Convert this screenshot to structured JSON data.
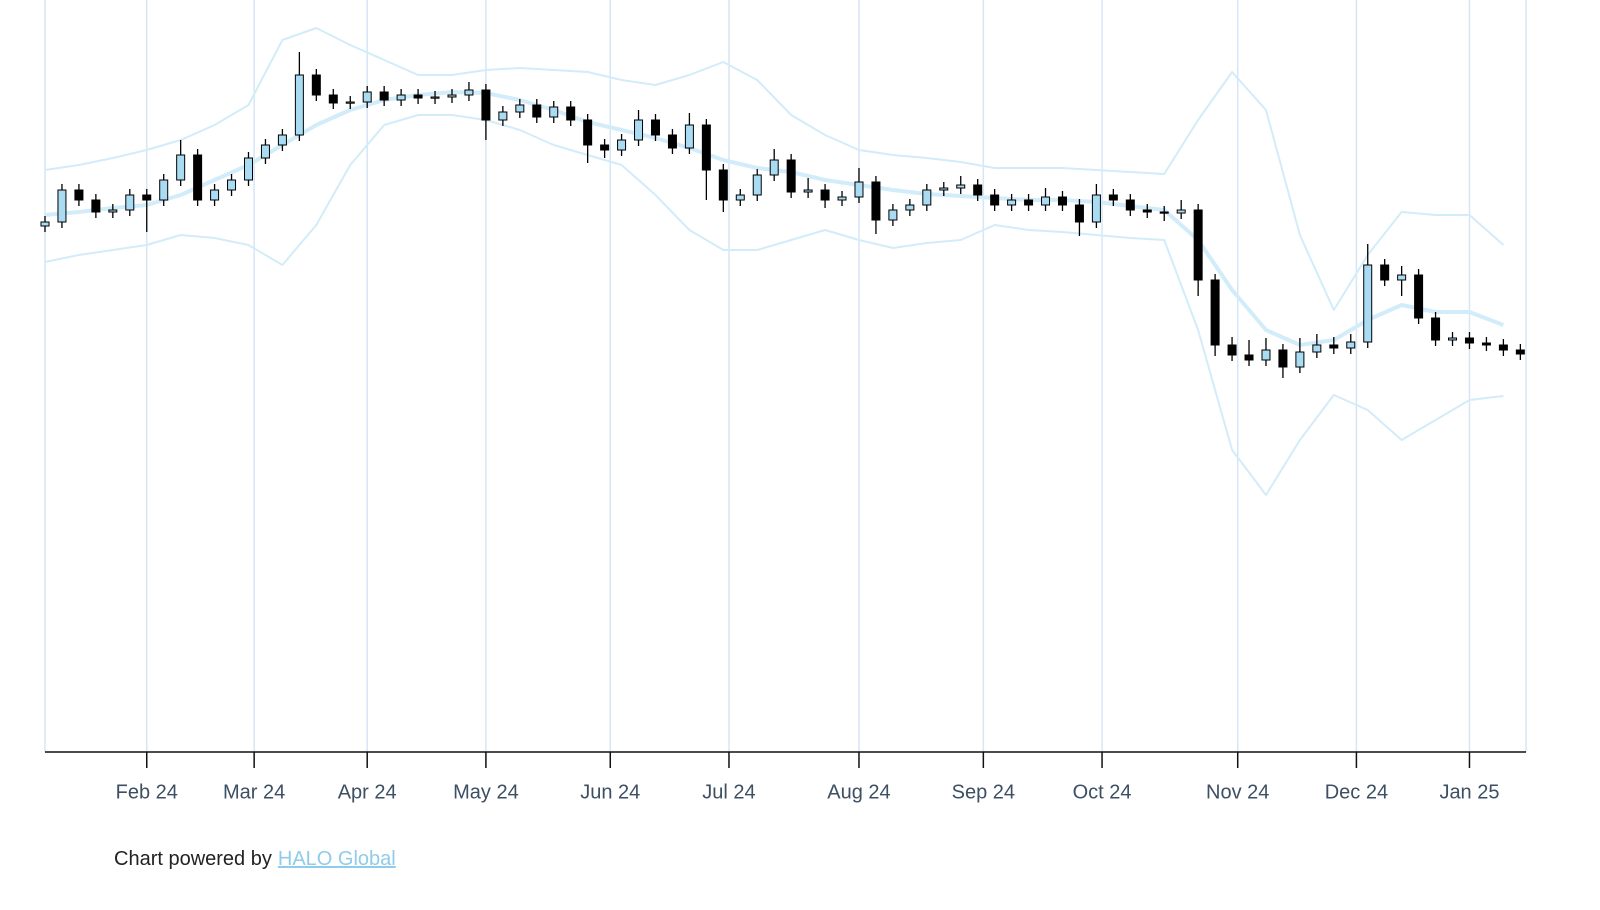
{
  "chart_data": {
    "type": "candlestick",
    "xlim": [
      0,
      262
    ],
    "ylim": [
      0,
      75.2
    ],
    "xticks": [
      {
        "value": 18,
        "label": "Feb 24"
      },
      {
        "value": 37,
        "label": "Mar 24"
      },
      {
        "value": 57,
        "label": "Apr 24"
      },
      {
        "value": 78,
        "label": "May 24"
      },
      {
        "value": 100,
        "label": "Jun 24"
      },
      {
        "value": 121,
        "label": "Jul 24"
      },
      {
        "value": 144,
        "label": "Aug 24"
      },
      {
        "value": 166,
        "label": "Sep 24"
      },
      {
        "value": 187,
        "label": "Oct 24"
      },
      {
        "value": 211,
        "label": "Nov 24"
      },
      {
        "value": 232,
        "label": "Dec 24"
      },
      {
        "value": 252,
        "label": "Jan 25"
      }
    ],
    "grid": true,
    "up_color": "#a9dcf3",
    "down_color": "#000000",
    "x": [
      0,
      3,
      6,
      9,
      12,
      15,
      18,
      21,
      24,
      27,
      30,
      33,
      36,
      39,
      42,
      45,
      48,
      51,
      54,
      57,
      60,
      63,
      66,
      69,
      72,
      75,
      78,
      81,
      84,
      87,
      90,
      93,
      96,
      99,
      102,
      105,
      108,
      111,
      114,
      117,
      120,
      123,
      126,
      129,
      132,
      135,
      138,
      141,
      144,
      147,
      150,
      153,
      156,
      159,
      162,
      165,
      168,
      171,
      174,
      177,
      180,
      183,
      186,
      189,
      192,
      195,
      198,
      201,
      204,
      207,
      210,
      213,
      216,
      219,
      222,
      225,
      228,
      231,
      234,
      237,
      240,
      243,
      246,
      249,
      252,
      255,
      258,
      261
    ],
    "open": [
      52.6,
      53.0,
      56.2,
      55.2,
      54.0,
      54.2,
      55.7,
      55.2,
      57.2,
      59.7,
      55.2,
      56.2,
      57.2,
      59.4,
      60.7,
      61.7,
      67.7,
      65.7,
      64.9,
      65.0,
      66.0,
      65.2,
      65.7,
      65.4,
      65.5,
      65.7,
      66.2,
      63.2,
      64.0,
      64.7,
      63.5,
      64.5,
      63.2,
      60.7,
      60.2,
      61.2,
      63.2,
      61.7,
      60.4,
      62.7,
      58.2,
      55.2,
      55.7,
      57.7,
      59.2,
      56.0,
      56.2,
      55.2,
      55.5,
      57.0,
      53.2,
      54.2,
      54.7,
      56.2,
      56.4,
      56.7,
      55.7,
      54.7,
      55.2,
      54.7,
      55.5,
      54.7,
      53.0,
      55.7,
      55.2,
      54.2,
      54.0,
      53.9,
      54.2,
      47.2,
      40.7,
      39.7,
      39.2,
      40.2,
      38.5,
      40.0,
      40.7,
      40.4,
      41.0,
      48.7,
      47.2,
      47.7,
      43.4,
      41.2,
      41.4,
      40.9,
      40.7,
      40.2
    ],
    "high": [
      53.6,
      56.8,
      56.8,
      55.8,
      54.8,
      56.3,
      56.3,
      57.8,
      61.2,
      60.3,
      56.8,
      57.8,
      60.0,
      61.3,
      62.3,
      70.0,
      68.3,
      66.3,
      65.6,
      66.6,
      66.6,
      66.3,
      66.3,
      66.1,
      66.3,
      67.0,
      66.8,
      64.6,
      65.3,
      65.3,
      65.1,
      65.1,
      63.8,
      61.3,
      61.8,
      64.2,
      63.8,
      62.3,
      63.9,
      63.3,
      58.8,
      56.3,
      58.3,
      60.3,
      59.8,
      57.4,
      56.8,
      56.1,
      58.4,
      57.6,
      54.8,
      55.3,
      56.8,
      57.0,
      57.6,
      57.3,
      56.3,
      55.8,
      55.8,
      56.4,
      56.1,
      55.3,
      56.8,
      56.3,
      55.8,
      54.8,
      54.6,
      55.2,
      54.8,
      47.8,
      41.5,
      41.2,
      41.4,
      40.8,
      41.4,
      41.8,
      41.5,
      41.8,
      50.8,
      49.3,
      48.6,
      48.3,
      44.0,
      42.0,
      42.0,
      41.5,
      41.3,
      40.8
    ],
    "low": [
      52.0,
      52.4,
      54.6,
      53.4,
      53.4,
      53.6,
      52.0,
      54.6,
      56.6,
      54.6,
      54.6,
      55.6,
      56.6,
      58.8,
      60.1,
      61.1,
      65.1,
      64.3,
      64.3,
      64.4,
      64.6,
      64.6,
      64.8,
      64.8,
      64.9,
      65.1,
      61.2,
      62.6,
      63.4,
      62.9,
      62.9,
      62.6,
      58.9,
      59.4,
      59.6,
      60.6,
      61.1,
      59.8,
      59.8,
      55.2,
      54.0,
      54.6,
      55.1,
      57.1,
      55.4,
      55.4,
      54.4,
      54.6,
      54.9,
      51.8,
      52.6,
      53.6,
      54.1,
      55.6,
      55.8,
      55.1,
      54.1,
      54.1,
      54.1,
      54.1,
      54.1,
      51.6,
      52.4,
      54.6,
      53.6,
      53.4,
      53.1,
      53.3,
      45.6,
      39.6,
      39.1,
      38.6,
      38.6,
      37.4,
      37.9,
      39.4,
      39.8,
      39.8,
      40.4,
      46.6,
      45.6,
      42.8,
      40.6,
      40.6,
      40.3,
      40.1,
      39.6,
      39.2
    ],
    "close": [
      53.0,
      56.2,
      55.2,
      54.0,
      54.2,
      55.7,
      55.2,
      57.2,
      59.7,
      55.2,
      56.2,
      57.2,
      59.4,
      60.7,
      61.7,
      67.7,
      65.7,
      64.9,
      65.0,
      66.0,
      65.2,
      65.7,
      65.4,
      65.5,
      65.7,
      66.2,
      63.2,
      64.0,
      64.7,
      63.5,
      64.5,
      63.2,
      60.7,
      60.2,
      61.2,
      63.2,
      61.7,
      60.4,
      62.7,
      58.2,
      55.2,
      55.7,
      57.7,
      59.2,
      56.0,
      56.2,
      55.2,
      55.5,
      57.0,
      53.2,
      54.2,
      54.7,
      56.2,
      56.4,
      56.7,
      55.7,
      54.7,
      55.2,
      54.7,
      55.5,
      54.7,
      53.0,
      55.7,
      55.2,
      54.2,
      54.0,
      53.9,
      54.2,
      47.2,
      40.7,
      39.7,
      39.2,
      40.2,
      38.5,
      40.0,
      40.7,
      40.4,
      41.0,
      48.7,
      47.2,
      47.7,
      43.4,
      41.2,
      41.4,
      40.9,
      40.7,
      40.2,
      39.8
    ],
    "bands": {
      "color": "#d3ecfa",
      "x": [
        0,
        6,
        12,
        18,
        24,
        30,
        36,
        42,
        48,
        54,
        60,
        66,
        72,
        78,
        84,
        90,
        96,
        102,
        108,
        114,
        120,
        126,
        132,
        138,
        144,
        150,
        156,
        162,
        168,
        174,
        180,
        186,
        192,
        198,
        204,
        210,
        216,
        222,
        228,
        234,
        240,
        246,
        252,
        258
      ],
      "upper": [
        58.2,
        58.7,
        59.4,
        60.2,
        61.2,
        62.7,
        64.7,
        71.2,
        72.4,
        70.7,
        69.2,
        67.7,
        67.7,
        68.2,
        68.4,
        68.2,
        68.0,
        67.2,
        66.7,
        67.7,
        69.0,
        67.2,
        63.7,
        61.7,
        60.2,
        59.7,
        59.4,
        59.0,
        58.4,
        58.4,
        58.4,
        58.2,
        58.0,
        57.8,
        63.2,
        68.0,
        64.2,
        51.7,
        44.2,
        49.7,
        54.0,
        53.7,
        53.7,
        50.7
      ],
      "middle": [
        53.7,
        54.0,
        54.4,
        54.7,
        55.7,
        57.2,
        58.7,
        60.7,
        62.7,
        64.2,
        65.2,
        65.7,
        66.0,
        65.9,
        65.2,
        64.2,
        63.0,
        62.2,
        61.4,
        60.4,
        59.2,
        58.4,
        58.0,
        57.2,
        56.7,
        56.2,
        55.8,
        55.6,
        55.4,
        55.2,
        55.2,
        55.0,
        54.6,
        54.2,
        51.2,
        46.2,
        42.2,
        40.7,
        41.2,
        43.2,
        44.7,
        44.0,
        44.0,
        42.7
      ],
      "lower": [
        49.0,
        49.7,
        50.2,
        50.7,
        51.7,
        51.4,
        50.7,
        48.7,
        52.7,
        58.7,
        62.7,
        63.7,
        63.7,
        63.2,
        62.2,
        60.7,
        59.7,
        58.7,
        55.7,
        52.2,
        50.2,
        50.2,
        51.2,
        52.2,
        51.2,
        50.4,
        50.9,
        51.2,
        52.7,
        52.2,
        52.0,
        51.7,
        51.4,
        51.2,
        42.2,
        30.2,
        25.7,
        31.2,
        35.7,
        34.2,
        31.2,
        33.2,
        35.2,
        35.6
      ]
    }
  },
  "footer": {
    "text": "Chart powered by",
    "link": "HALO Global"
  }
}
